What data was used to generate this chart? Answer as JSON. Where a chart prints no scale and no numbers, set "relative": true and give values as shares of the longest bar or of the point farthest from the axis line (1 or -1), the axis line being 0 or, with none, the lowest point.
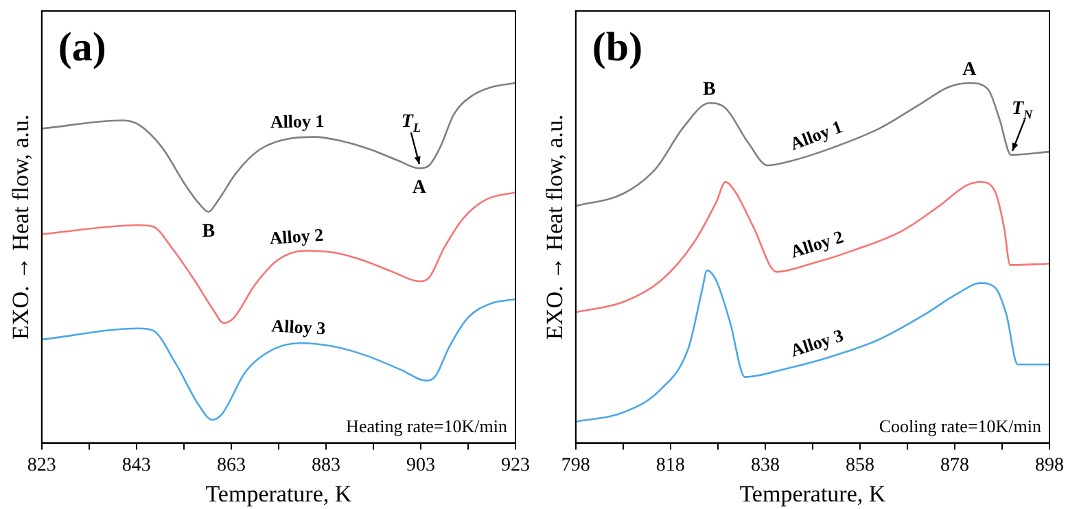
{
  "chart_data": [
    {
      "type": "line",
      "title": "(a)",
      "xlabel": "Temperature, K",
      "ylabel": "EXO. → Heat flow, a.u.",
      "relative": true,
      "legend": false,
      "grid": false,
      "marker": "none",
      "line_style": "solid",
      "xlim": [
        823,
        923
      ],
      "xticks": [
        823,
        {
          "value": 833,
          "label": null
        },
        843,
        {
          "value": 853,
          "label": null
        },
        863,
        {
          "value": 873,
          "label": null
        },
        883,
        {
          "value": 893,
          "label": null
        },
        903,
        {
          "value": 913,
          "label": null
        },
        923
      ],
      "annotations": [
        {
          "text": "B",
          "x": 858.2,
          "y": 0.642
        },
        {
          "text": "A",
          "x": 902.7,
          "y": 0.763
        },
        {
          "text": "T$_{L}$",
          "x": 902.7,
          "y": 0.763
        },
        "Heating rate=10K/min"
      ],
      "series": [
        {
          "name": "Alloy 1",
          "color": "#808080",
          "x": [
            823,
            840.1,
            843.5,
            848.4,
            853.3,
            856.2,
            858.2,
            860.1,
            864.1,
            869,
            874.8,
            880.7,
            886.5,
            892.4,
            898.3,
            902.7,
            904.6,
            907.1,
            910,
            913.9,
            917.8,
            923
          ],
          "values": [
            0.873,
            0.896,
            0.884,
            0.821,
            0.717,
            0.665,
            0.642,
            0.671,
            0.751,
            0.815,
            0.844,
            0.85,
            0.838,
            0.815,
            0.784,
            0.763,
            0.769,
            0.821,
            0.913,
            0.965,
            0.988,
            1.0
          ]
        },
        {
          "name": "Alloy 2",
          "color": "#f87474",
          "x": [
            823,
            843.5,
            846.5,
            850.4,
            855.3,
            859.2,
            861.4,
            863.5,
            868,
            872.9,
            878.7,
            884.6,
            890.4,
            897.3,
            902.7,
            904.6,
            908,
            912,
            916.8,
            923
          ],
          "values": [
            0.58,
            0.605,
            0.601,
            0.543,
            0.451,
            0.37,
            0.333,
            0.347,
            0.439,
            0.509,
            0.534,
            0.529,
            0.509,
            0.474,
            0.449,
            0.457,
            0.543,
            0.624,
            0.676,
            0.696
          ]
        },
        {
          "name": "Alloy 3",
          "color": "#4aa8e8",
          "x": [
            823,
            843.5,
            846.5,
            851.3,
            856.2,
            859,
            861.1,
            866,
            871.9,
            877.7,
            884.6,
            891.4,
            899,
            904.1,
            906.1,
            909,
            912.9,
            917.8,
            923
          ],
          "values": [
            0.287,
            0.318,
            0.312,
            0.22,
            0.104,
            0.064,
            0.081,
            0.197,
            0.26,
            0.277,
            0.268,
            0.243,
            0.202,
            0.173,
            0.185,
            0.266,
            0.347,
            0.387,
            0.399
          ]
        }
      ]
    },
    {
      "type": "line",
      "title": "(b)",
      "xlabel": "Temperature, K",
      "ylabel": "EXO. → Heat flow, a.u.",
      "relative": true,
      "legend": false,
      "grid": false,
      "marker": "none",
      "line_style": "solid",
      "xlim": [
        798,
        898
      ],
      "xticks": [
        798,
        {
          "value": 808,
          "label": null
        },
        818,
        {
          "value": 828,
          "label": null
        },
        838,
        {
          "value": 848,
          "label": null
        },
        858,
        {
          "value": 868,
          "label": null
        },
        878,
        {
          "value": 888,
          "label": null
        },
        898
      ],
      "annotations": [
        {
          "text": "B",
          "x": 826.2,
          "y": 0.944
        },
        {
          "text": "A",
          "x": 881.1,
          "y": 1.0
        },
        {
          "text": "T$_{N}$",
          "x": 889.9,
          "y": 0.8
        },
        "Cooling rate=10K/min"
      ],
      "series": [
        {
          "name": "Alloy 1",
          "color": "#808080",
          "x": [
            798,
            808.1,
            814.9,
            820.8,
            826.2,
            829.6,
            834.5,
            838.5,
            843.4,
            852.2,
            862,
            870.8,
            876.6,
            881.1,
            885,
            887.4,
            889.9,
            898
          ],
          "values": [
            0.658,
            0.693,
            0.762,
            0.878,
            0.944,
            0.93,
            0.832,
            0.771,
            0.783,
            0.82,
            0.873,
            0.942,
            0.988,
            1.0,
            0.983,
            0.902,
            0.8,
            0.809
          ]
        },
        {
          "name": "Alloy 2",
          "color": "#f87474",
          "x": [
            798,
            808.1,
            815.9,
            822.8,
            827.7,
            829.6,
            831.6,
            835.5,
            840.4,
            847.3,
            857.1,
            866.9,
            874.7,
            880.6,
            883.5,
            886.5,
            888.4,
            889.7,
            898
          ],
          "values": [
            0.363,
            0.392,
            0.45,
            0.554,
            0.67,
            0.725,
            0.699,
            0.6,
            0.475,
            0.496,
            0.537,
            0.589,
            0.658,
            0.716,
            0.725,
            0.699,
            0.6,
            0.494,
            0.498
          ]
        },
        {
          "name": "Alloy 3",
          "color": "#4aa8e8",
          "x": [
            798,
            808.1,
            815.9,
            821.8,
            824.7,
            825.7,
            827.7,
            830.6,
            833.7,
            842.4,
            852.2,
            862,
            871.7,
            878.6,
            883.5,
            886.5,
            888.9,
            891.3,
            898
          ],
          "values": [
            0.059,
            0.085,
            0.148,
            0.264,
            0.426,
            0.479,
            0.45,
            0.334,
            0.183,
            0.206,
            0.241,
            0.287,
            0.357,
            0.415,
            0.444,
            0.432,
            0.357,
            0.218,
            0.218
          ]
        }
      ]
    }
  ]
}
